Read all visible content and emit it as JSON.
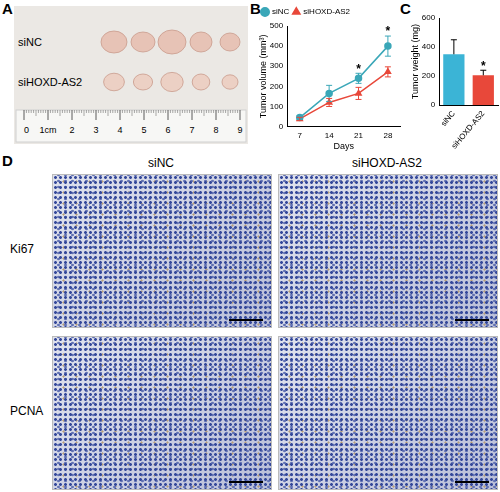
{
  "figure": {
    "panels": [
      "A",
      "B",
      "C",
      "D"
    ],
    "panel_a": {
      "rows": [
        "siNC",
        "siHOXD-AS2"
      ],
      "ruler_labels": [
        "0",
        "1cm",
        "2",
        "3",
        "4",
        "5",
        "6",
        "7",
        "8",
        "9"
      ]
    },
    "panel_d": {
      "columns": [
        "siNC",
        "siHOXD-AS2"
      ],
      "rows": [
        "Ki67",
        "PCNA"
      ]
    }
  },
  "chart_data": [
    {
      "type": "line",
      "x": [
        7,
        14,
        21,
        28
      ],
      "xlim": [
        4,
        31
      ],
      "xticks": [
        7,
        14,
        21,
        28
      ],
      "ylim": [
        0,
        500
      ],
      "yticks": [
        0,
        100,
        200,
        300,
        400,
        500
      ],
      "x_label": "Days",
      "y_label": "Tumor volume (mm³)",
      "legend": "upper left",
      "grid": false,
      "series": [
        {
          "name": "siNC",
          "color": "#3aa7b8",
          "marker": "circle",
          "values": [
            45,
            165,
            240,
            400
          ],
          "errors": [
            10,
            40,
            25,
            50
          ]
        },
        {
          "name": "siHOXD-AS2",
          "color": "#e8483a",
          "marker": "triangle",
          "values": [
            38,
            120,
            165,
            272
          ],
          "errors": [
            8,
            20,
            30,
            25
          ]
        }
      ],
      "annotations": [
        {
          "x": 21,
          "text": "*"
        },
        {
          "x": 28,
          "text": "*"
        }
      ]
    },
    {
      "type": "bar",
      "categories": [
        "siNC",
        "siHOXD-AS2"
      ],
      "values": [
        350,
        205
      ],
      "errors": [
        100,
        35
      ],
      "colors": [
        "#3bb4d6",
        "#e8483a"
      ],
      "ylim": [
        0,
        600
      ],
      "yticks": [
        0,
        200,
        400,
        600
      ],
      "y_label": "Tumor weight (mg)",
      "grid": false,
      "annotations": [
        {
          "category": "siHOXD-AS2",
          "text": "*"
        }
      ]
    }
  ]
}
